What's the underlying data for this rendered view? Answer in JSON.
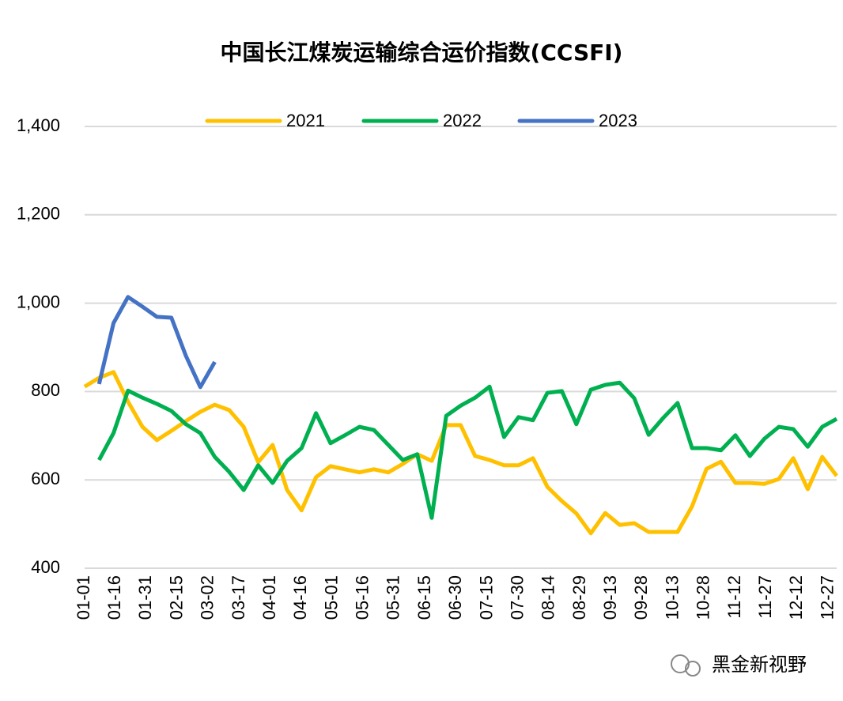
{
  "chart_data": {
    "type": "line",
    "title": "中国长江煤炭运输综合运价指数(CCSFI)",
    "x": [
      "01-01",
      "01-08",
      "01-15",
      "01-22",
      "01-29",
      "02-05",
      "02-12",
      "02-19",
      "02-26",
      "03-05",
      "03-12",
      "03-19",
      "03-26",
      "04-02",
      "04-09",
      "04-16",
      "04-23",
      "04-30",
      "05-07",
      "05-14",
      "05-21",
      "05-28",
      "06-04",
      "06-11",
      "06-18",
      "06-25",
      "07-02",
      "07-09",
      "07-16",
      "07-23",
      "07-30",
      "08-06",
      "08-13",
      "08-20",
      "08-27",
      "09-03",
      "09-10",
      "09-17",
      "09-24",
      "10-01",
      "10-08",
      "10-15",
      "10-22",
      "10-29",
      "11-05",
      "11-12",
      "11-19",
      "11-26",
      "12-03",
      "12-10",
      "12-17",
      "12-24",
      "12-31"
    ],
    "series": [
      {
        "name": "2021",
        "color": "#FFC000",
        "values": [
          811,
          831,
          844,
          777,
          720,
          690,
          711,
          733,
          754,
          770,
          758,
          720,
          640,
          679,
          577,
          531,
          606,
          631,
          624,
          617,
          624,
          617,
          636,
          658,
          643,
          724,
          724,
          654,
          645,
          633,
          633,
          649,
          584,
          552,
          524,
          479,
          525,
          498,
          502,
          482,
          482,
          482,
          540,
          625,
          641,
          593,
          593,
          591,
          602,
          649,
          579,
          652,
          609
        ]
      },
      {
        "name": "2022",
        "color": "#00B050",
        "values": [
          null,
          645,
          706,
          802,
          786,
          772,
          756,
          726,
          706,
          652,
          618,
          577,
          633,
          593,
          643,
          672,
          751,
          683,
          701,
          720,
          713,
          679,
          645,
          658,
          514,
          745,
          768,
          786,
          811,
          697,
          742,
          735,
          797,
          801,
          726,
          804,
          815,
          820,
          785,
          702,
          740,
          774,
          672,
          672,
          667,
          701,
          654,
          693,
          720,
          715,
          675,
          720,
          738
        ]
      },
      {
        "name": "2023",
        "color": "#4472C4",
        "values": [
          null,
          817,
          955,
          1014,
          992,
          969,
          967,
          881,
          810,
          867,
          null,
          null,
          null,
          null,
          null,
          null,
          null,
          null,
          null,
          null,
          null,
          null,
          null,
          null,
          null,
          null,
          null,
          null,
          null,
          null,
          null,
          null,
          null,
          null,
          null,
          null,
          null,
          null,
          null,
          null,
          null,
          null,
          null,
          null,
          null,
          null,
          null,
          null,
          null,
          null,
          null,
          null,
          null
        ]
      }
    ],
    "xlim": [
      "01-01",
      "12-31"
    ],
    "xticks": [
      "01-01",
      "01-16",
      "01-31",
      "02-15",
      "03-02",
      "03-17",
      "04-01",
      "04-16",
      "05-01",
      "05-16",
      "05-31",
      "06-15",
      "06-30",
      "07-15",
      "07-30",
      "08-14",
      "08-29",
      "09-13",
      "09-28",
      "10-13",
      "10-28",
      "11-12",
      "11-27",
      "12-12",
      "12-27"
    ],
    "ylim": [
      400,
      1400
    ],
    "yticks": [
      400,
      600,
      800,
      {
        "value": 1000,
        "label": "1,000"
      },
      {
        "value": 1200,
        "label": "1,200"
      },
      {
        "value": 1400,
        "label": "1,400"
      }
    ],
    "grid": true,
    "legend": "top",
    "watermark": "黑金新视野"
  }
}
